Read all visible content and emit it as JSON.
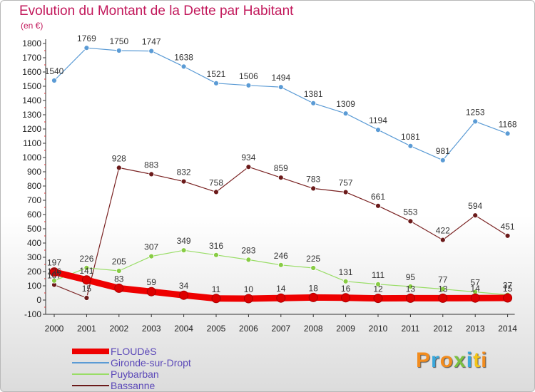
{
  "title": "Evolution du Montant de la Dette par Habitant",
  "subtitle": "(en €)",
  "chart_data": {
    "type": "line",
    "x": [
      "2000",
      "2001",
      "2002",
      "2003",
      "2004",
      "2005",
      "2006",
      "2007",
      "2008",
      "2009",
      "2010",
      "2011",
      "2012",
      "2013",
      "2014"
    ],
    "ylim": [
      -100,
      1800
    ],
    "y_ticks": [
      -100,
      0,
      100,
      200,
      300,
      400,
      500,
      600,
      700,
      800,
      900,
      1000,
      1100,
      1200,
      1300,
      1400,
      1500,
      1600,
      1700,
      1800
    ],
    "grid": false,
    "legend_position": "bottom-left",
    "series": [
      {
        "name": "FLOUDèS",
        "color": "#ee0000",
        "labels_shown": true,
        "values": [
          197,
          141,
          83,
          59,
          34,
          11,
          10,
          14,
          18,
          16,
          12,
          13,
          13,
          14,
          15
        ]
      },
      {
        "name": "Gironde-sur-Dropt",
        "color": "#5b9bd5",
        "labels_shown": true,
        "values": [
          1540,
          1769,
          1750,
          1747,
          1638,
          1521,
          1506,
          1494,
          1381,
          1309,
          1194,
          1081,
          981,
          1253,
          1168
        ]
      },
      {
        "name": "Puybarban",
        "color": "#99dd66",
        "labels_shown": true,
        "values": [
          136,
          226,
          205,
          307,
          349,
          316,
          283,
          246,
          225,
          131,
          111,
          95,
          77,
          57,
          37
        ]
      },
      {
        "name": "Bassanne",
        "color": "#6b1a1a",
        "labels_shown": true,
        "values": [
          107,
          15,
          928,
          883,
          832,
          758,
          934,
          859,
          783,
          757,
          661,
          553,
          422,
          594,
          451
        ]
      }
    ]
  },
  "logo": {
    "text": "Proxiti",
    "colors": [
      "#f28c1e",
      "#3aa8dc",
      "#f28c1e",
      "#7ac142",
      "#3aa8dc",
      "#f5c518",
      "#f28c1e"
    ]
  }
}
